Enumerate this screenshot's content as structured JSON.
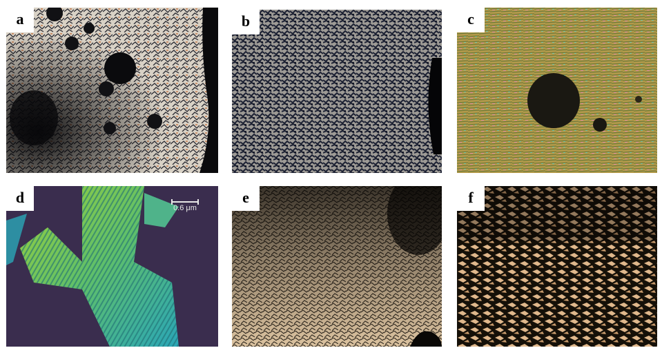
{
  "figure": {
    "panels": [
      {
        "id": "a",
        "label": "a"
      },
      {
        "id": "b",
        "label": "b"
      },
      {
        "id": "c",
        "label": "c"
      },
      {
        "id": "d",
        "label": "d",
        "scale_bar": "0.6 μm"
      },
      {
        "id": "e",
        "label": "e"
      },
      {
        "id": "f",
        "label": "f"
      }
    ]
  }
}
